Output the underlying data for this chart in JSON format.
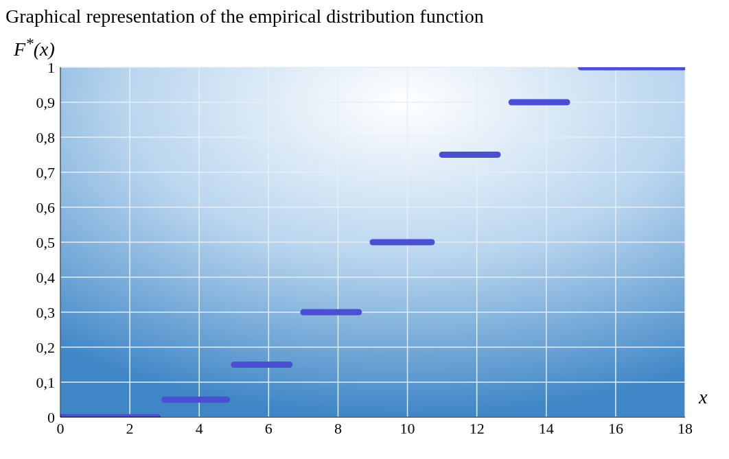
{
  "chart_data": {
    "type": "line",
    "title": "Graphical representation of the empirical distribution function",
    "xlabel": "x",
    "ylabel": "F$^{*}$(x)",
    "series": [
      {
        "color": "#4b50d2",
        "x": [
          0,
          2.8
        ],
        "values": [
          0,
          0
        ]
      },
      {
        "color": "#4b50d2",
        "x": [
          3,
          4.8
        ],
        "values": [
          0.05,
          0.05
        ]
      },
      {
        "color": "#4b50d2",
        "x": [
          5,
          6.6
        ],
        "values": [
          0.15,
          0.15
        ]
      },
      {
        "color": "#4b50d2",
        "x": [
          7,
          8.6
        ],
        "values": [
          0.3,
          0.3
        ]
      },
      {
        "color": "#4b50d2",
        "x": [
          9,
          10.7
        ],
        "values": [
          0.5,
          0.5
        ]
      },
      {
        "color": "#4b50d2",
        "x": [
          11,
          12.6
        ],
        "values": [
          0.75,
          0.75
        ]
      },
      {
        "color": "#4b50d2",
        "x": [
          13,
          14.6
        ],
        "values": [
          0.9,
          0.9
        ]
      },
      {
        "color": "#4b50d2",
        "x": [
          15,
          18
        ],
        "values": [
          1,
          1
        ]
      }
    ],
    "xlim": [
      0,
      18
    ],
    "xticks": [
      0,
      2,
      4,
      6,
      8,
      10,
      12,
      14,
      16,
      18
    ],
    "ylim": [
      0,
      1
    ],
    "yticks": [
      0,
      {
        "value": 0.1,
        "label": "0,1"
      },
      {
        "value": 0.2,
        "label": "0,2"
      },
      {
        "value": 0.3,
        "label": "0,3"
      },
      {
        "value": 0.4,
        "label": "0,4"
      },
      {
        "value": 0.5,
        "label": "0,5"
      },
      {
        "value": 0.6,
        "label": "0,6"
      },
      {
        "value": 0.7,
        "label": "0,7"
      },
      {
        "value": 0.8,
        "label": "0,8"
      },
      {
        "value": 0.9,
        "label": "0,9"
      },
      1
    ],
    "grid": true,
    "marker": "none",
    "line_style": "solid"
  }
}
